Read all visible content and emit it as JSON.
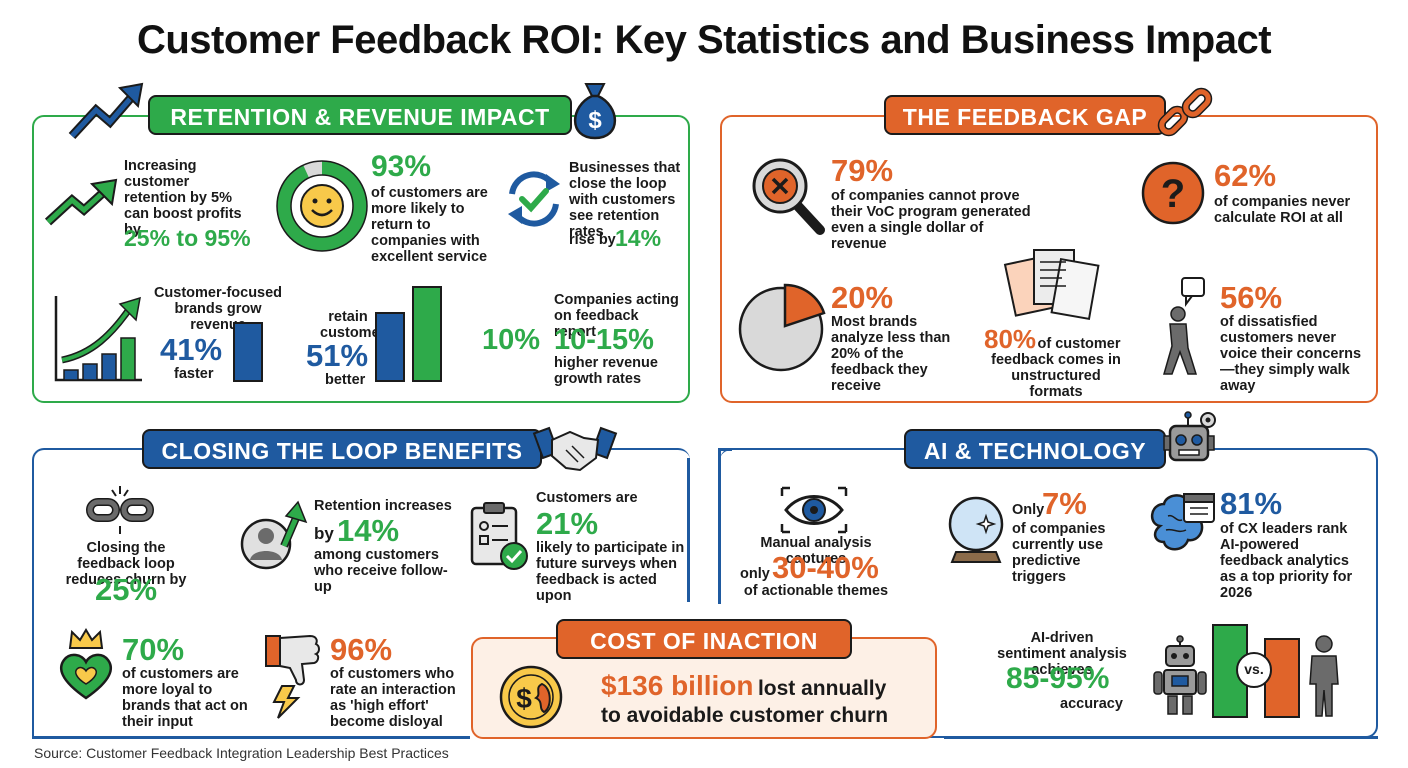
{
  "title": "Customer Feedback ROI: Key Statistics and Business Impact",
  "colors": {
    "green": "#2eaa4a",
    "orange": "#e0642a",
    "blue": "#1f5aa0",
    "cream": "#fdf0e6"
  },
  "retention": {
    "header": "RETENTION & REVENUE IMPACT",
    "stat1_text": "Increasing customer retention by 5% can boost profits by",
    "stat1_value": "25% to 95%",
    "stat2_value": "93%",
    "stat2_text": "of customers are more likely to return to companies with excellent service",
    "stat3_text": "Businesses that close the loop with customers see retention rates",
    "stat3_prefix": "rise by",
    "stat3_value": "14%",
    "stat4_text": "Customer-focused brands grow revenue",
    "stat4_value": "41%",
    "stat4_suffix": "faster",
    "stat5_prefix": "retain customers",
    "stat5_value": "51%",
    "stat5_suffix": "better",
    "stat6_left": "10%",
    "stat6_text": "Companies acting on feedback report",
    "stat6_value": "10-15%",
    "stat6_suffix": "higher revenue growth rates"
  },
  "gap": {
    "header": "THE FEEDBACK GAP",
    "s1_value": "79%",
    "s1_text": "of companies cannot prove their VoC program generated even a single dollar of revenue",
    "s2_value": "62%",
    "s2_text": "of companies never calculate ROI at all",
    "s3_value": "20%",
    "s3_text": "Most brands analyze less than 20% of the feedback they receive",
    "s4_value": "80%",
    "s4_text": "of customer feedback comes in unstructured formats",
    "s5_value": "56%",
    "s5_text": "of dissatisfied customers never voice their concerns—they simply walk away"
  },
  "loop": {
    "header": "CLOSING THE LOOP BENEFITS",
    "s1_text": "Closing the feedback loop reduces churn by",
    "s1_value": "25%",
    "s2_text": "Retention increases",
    "s2_prefix": "by",
    "s2_value": "14%",
    "s2_suffix": "among customers who receive follow-up",
    "s3_text": "Customers are",
    "s3_value": "21%",
    "s3_suffix": "likely to participate in future surveys when feedback is acted upon",
    "s4_value": "70%",
    "s4_text": "of customers are more loyal to brands that act on their input",
    "s5_value": "96%",
    "s5_text": "of customers who rate an interaction as 'high effort' become disloyal"
  },
  "ai": {
    "header": "AI & TECHNOLOGY",
    "s1_text": "Manual analysis captures",
    "s1_prefix": "only",
    "s1_value": "30-40%",
    "s1_suffix": "of actionable themes",
    "s2_prefix": "Only",
    "s2_value": "7%",
    "s2_text": "of companies currently use predictive triggers",
    "s3_value": "81%",
    "s3_text": "of CX leaders rank AI-powered feedback analytics as a top priority for 2026",
    "s4_text": "AI-driven sentiment analysis achieves",
    "s4_value": "85-95%",
    "s4_suffix": "accuracy",
    "vs_label": "vs."
  },
  "inaction": {
    "header": "COST OF INACTION",
    "value": "$136 billion",
    "text1": "lost annually",
    "text2": "to avoidable customer churn"
  },
  "source": "Source: Customer Feedback Integration Leadership Best Practices",
  "icons": [
    "trend-arrow-icon",
    "money-bag-icon",
    "donut-smiley-icon",
    "refresh-check-icon",
    "bar-growth-icon",
    "magnifier-x-icon",
    "question-icon",
    "broken-link-icon",
    "pie-icon",
    "documents-icon",
    "walking-person-icon",
    "handshake-icon",
    "broken-chain-icon",
    "person-arrow-icon",
    "clipboard-check-icon",
    "heart-crown-icon",
    "thumbs-down-icon",
    "robot-icon",
    "eye-icon",
    "crystal-ball-icon",
    "brain-calendar-icon",
    "broken-coin-icon"
  ]
}
